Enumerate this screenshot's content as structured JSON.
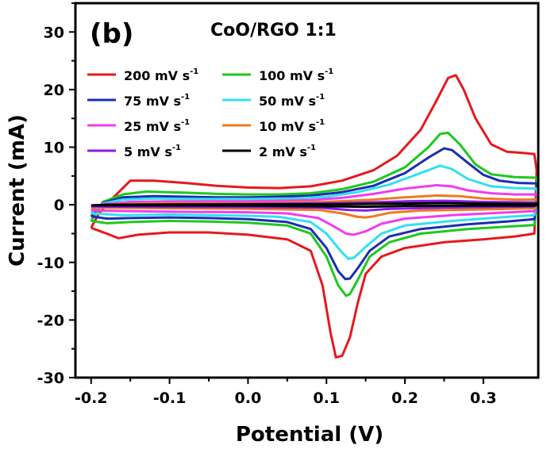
{
  "chart_data": {
    "type": "line",
    "panel_label": "(b)",
    "title": "CoO/RGO 1:1",
    "xlabel": "Potential (V)",
    "ylabel": "Current (mA)",
    "xlim": [
      -0.22,
      0.37
    ],
    "ylim": [
      -30,
      35
    ],
    "xticks": [
      -0.2,
      -0.1,
      0.0,
      0.1,
      0.2,
      0.3
    ],
    "xtick_labels": [
      "-0.2",
      "-0.1",
      "0.0",
      "0.1",
      "0.2",
      "0.3"
    ],
    "yticks": [
      -30,
      -20,
      -10,
      0,
      10,
      20,
      30
    ],
    "ytick_labels": [
      "-30",
      "-20",
      "-10",
      "0",
      "10",
      "20",
      "30"
    ],
    "grid": false,
    "legend_position": "top-left",
    "series": [
      {
        "name": "200 mV s",
        "color": "#e41a1c",
        "anodic": [
          [
            -0.2,
            -4
          ],
          [
            -0.19,
            -1.5
          ],
          [
            -0.17,
            1.5
          ],
          [
            -0.15,
            4.2
          ],
          [
            -0.12,
            4.2
          ],
          [
            -0.08,
            3.8
          ],
          [
            -0.04,
            3.3
          ],
          [
            0.0,
            3.0
          ],
          [
            0.04,
            2.9
          ],
          [
            0.08,
            3.2
          ],
          [
            0.12,
            4.2
          ],
          [
            0.16,
            6.0
          ],
          [
            0.19,
            8.5
          ],
          [
            0.22,
            13
          ],
          [
            0.24,
            18
          ],
          [
            0.255,
            22
          ],
          [
            0.265,
            22.5
          ],
          [
            0.275,
            20
          ],
          [
            0.29,
            15
          ],
          [
            0.31,
            10.5
          ],
          [
            0.33,
            9.2
          ],
          [
            0.35,
            9.0
          ],
          [
            0.365,
            8.8
          ],
          [
            0.368,
            6
          ]
        ],
        "cathodic": [
          [
            0.368,
            6
          ],
          [
            0.365,
            -5
          ],
          [
            0.34,
            -5.5
          ],
          [
            0.3,
            -6
          ],
          [
            0.25,
            -6.5
          ],
          [
            0.2,
            -7.5
          ],
          [
            0.17,
            -9
          ],
          [
            0.15,
            -12
          ],
          [
            0.14,
            -17
          ],
          [
            0.13,
            -23
          ],
          [
            0.12,
            -26.2
          ],
          [
            0.112,
            -26.5
          ],
          [
            0.105,
            -22
          ],
          [
            0.095,
            -14
          ],
          [
            0.08,
            -8
          ],
          [
            0.05,
            -6
          ],
          [
            0.0,
            -5.2
          ],
          [
            -0.05,
            -4.8
          ],
          [
            -0.1,
            -4.8
          ],
          [
            -0.14,
            -5.2
          ],
          [
            -0.165,
            -5.8
          ],
          [
            -0.18,
            -5
          ],
          [
            -0.2,
            -4
          ]
        ]
      },
      {
        "name": "100 mV s",
        "color": "#1ec81e",
        "anodic": [
          [
            -0.2,
            -2.8
          ],
          [
            -0.185,
            0.5
          ],
          [
            -0.16,
            1.8
          ],
          [
            -0.13,
            2.3
          ],
          [
            -0.08,
            2.1
          ],
          [
            -0.04,
            1.9
          ],
          [
            0.0,
            1.8
          ],
          [
            0.04,
            1.8
          ],
          [
            0.08,
            2.0
          ],
          [
            0.12,
            2.7
          ],
          [
            0.16,
            4.0
          ],
          [
            0.2,
            6.5
          ],
          [
            0.23,
            10
          ],
          [
            0.245,
            12.3
          ],
          [
            0.255,
            12.5
          ],
          [
            0.27,
            10.5
          ],
          [
            0.29,
            7
          ],
          [
            0.31,
            5.3
          ],
          [
            0.34,
            4.8
          ],
          [
            0.368,
            4.7
          ],
          [
            0.369,
            3
          ]
        ],
        "cathodic": [
          [
            0.369,
            3
          ],
          [
            0.365,
            -3.5
          ],
          [
            0.33,
            -3.8
          ],
          [
            0.28,
            -4.2
          ],
          [
            0.22,
            -5
          ],
          [
            0.18,
            -6.5
          ],
          [
            0.155,
            -9
          ],
          [
            0.14,
            -13
          ],
          [
            0.13,
            -15.5
          ],
          [
            0.125,
            -15.8
          ],
          [
            0.115,
            -14
          ],
          [
            0.1,
            -9
          ],
          [
            0.08,
            -5
          ],
          [
            0.05,
            -3.6
          ],
          [
            0.0,
            -3.1
          ],
          [
            -0.05,
            -2.9
          ],
          [
            -0.1,
            -2.8
          ],
          [
            -0.15,
            -3.0
          ],
          [
            -0.18,
            -3.2
          ],
          [
            -0.2,
            -2.8
          ]
        ]
      },
      {
        "name": "75 mV s",
        "color": "#1a2eb0",
        "anodic": [
          [
            -0.2,
            -2.0
          ],
          [
            -0.185,
            0.3
          ],
          [
            -0.16,
            1.3
          ],
          [
            -0.12,
            1.5
          ],
          [
            -0.08,
            1.4
          ],
          [
            -0.04,
            1.3
          ],
          [
            0.0,
            1.3
          ],
          [
            0.04,
            1.4
          ],
          [
            0.08,
            1.6
          ],
          [
            0.12,
            2.2
          ],
          [
            0.16,
            3.3
          ],
          [
            0.2,
            5.5
          ],
          [
            0.23,
            8.2
          ],
          [
            0.25,
            9.8
          ],
          [
            0.26,
            9.5
          ],
          [
            0.28,
            7.3
          ],
          [
            0.3,
            5.2
          ],
          [
            0.32,
            4.2
          ],
          [
            0.345,
            3.8
          ],
          [
            0.368,
            3.7
          ],
          [
            0.369,
            2
          ]
        ],
        "cathodic": [
          [
            0.369,
            2
          ],
          [
            0.365,
            -2.5
          ],
          [
            0.33,
            -2.9
          ],
          [
            0.28,
            -3.4
          ],
          [
            0.22,
            -4.2
          ],
          [
            0.18,
            -5.5
          ],
          [
            0.155,
            -8
          ],
          [
            0.14,
            -11
          ],
          [
            0.13,
            -12.8
          ],
          [
            0.124,
            -12.9
          ],
          [
            0.115,
            -11.5
          ],
          [
            0.1,
            -7.5
          ],
          [
            0.08,
            -4.2
          ],
          [
            0.05,
            -3.0
          ],
          [
            0.0,
            -2.5
          ],
          [
            -0.05,
            -2.3
          ],
          [
            -0.1,
            -2.2
          ],
          [
            -0.15,
            -2.3
          ],
          [
            -0.18,
            -2.4
          ],
          [
            -0.2,
            -2.0
          ]
        ]
      },
      {
        "name": "50 mV s",
        "color": "#33e0f0",
        "anodic": [
          [
            -0.2,
            -1.5
          ],
          [
            -0.185,
            0.2
          ],
          [
            -0.16,
            0.9
          ],
          [
            -0.12,
            1.1
          ],
          [
            -0.06,
            1.0
          ],
          [
            0.0,
            1.0
          ],
          [
            0.06,
            1.1
          ],
          [
            0.1,
            1.4
          ],
          [
            0.14,
            2.2
          ],
          [
            0.18,
            3.5
          ],
          [
            0.22,
            5.5
          ],
          [
            0.245,
            6.8
          ],
          [
            0.26,
            6.2
          ],
          [
            0.28,
            4.5
          ],
          [
            0.31,
            3.2
          ],
          [
            0.34,
            2.9
          ],
          [
            0.368,
            2.8
          ],
          [
            0.369,
            1.5
          ]
        ],
        "cathodic": [
          [
            0.369,
            1.5
          ],
          [
            0.365,
            -1.8
          ],
          [
            0.32,
            -2.2
          ],
          [
            0.26,
            -2.8
          ],
          [
            0.2,
            -3.6
          ],
          [
            0.17,
            -5
          ],
          [
            0.15,
            -7.3
          ],
          [
            0.135,
            -9.2
          ],
          [
            0.128,
            -9.4
          ],
          [
            0.118,
            -8
          ],
          [
            0.1,
            -5
          ],
          [
            0.08,
            -3
          ],
          [
            0.04,
            -2.1
          ],
          [
            0.0,
            -1.9
          ],
          [
            -0.1,
            -1.7
          ],
          [
            -0.16,
            -1.8
          ],
          [
            -0.2,
            -1.5
          ]
        ]
      },
      {
        "name": "25 mV s",
        "color": "#f03cf0",
        "anodic": [
          [
            -0.2,
            -1.0
          ],
          [
            -0.185,
            0.1
          ],
          [
            -0.15,
            0.5
          ],
          [
            -0.1,
            0.6
          ],
          [
            0.0,
            0.6
          ],
          [
            0.08,
            0.8
          ],
          [
            0.12,
            1.2
          ],
          [
            0.16,
            1.9
          ],
          [
            0.2,
            2.8
          ],
          [
            0.24,
            3.4
          ],
          [
            0.26,
            3.2
          ],
          [
            0.28,
            2.5
          ],
          [
            0.31,
            2.0
          ],
          [
            0.34,
            1.8
          ],
          [
            0.368,
            1.8
          ],
          [
            0.369,
            1.0
          ]
        ],
        "cathodic": [
          [
            0.369,
            1.0
          ],
          [
            0.365,
            -1.1
          ],
          [
            0.32,
            -1.4
          ],
          [
            0.26,
            -1.8
          ],
          [
            0.2,
            -2.4
          ],
          [
            0.17,
            -3.3
          ],
          [
            0.15,
            -4.6
          ],
          [
            0.135,
            -5.2
          ],
          [
            0.125,
            -5.0
          ],
          [
            0.11,
            -3.8
          ],
          [
            0.09,
            -2.3
          ],
          [
            0.05,
            -1.5
          ],
          [
            0.0,
            -1.3
          ],
          [
            -0.1,
            -1.2
          ],
          [
            -0.2,
            -1.0
          ]
        ]
      },
      {
        "name": "10 mV s",
        "color": "#f07a1e",
        "anodic": [
          [
            -0.2,
            -0.5
          ],
          [
            -0.18,
            0.1
          ],
          [
            -0.12,
            0.3
          ],
          [
            0.0,
            0.3
          ],
          [
            0.1,
            0.5
          ],
          [
            0.16,
            0.9
          ],
          [
            0.2,
            1.3
          ],
          [
            0.24,
            1.6
          ],
          [
            0.27,
            1.5
          ],
          [
            0.3,
            1.1
          ],
          [
            0.34,
            0.9
          ],
          [
            0.368,
            0.9
          ],
          [
            0.369,
            0.4
          ]
        ],
        "cathodic": [
          [
            0.369,
            0.4
          ],
          [
            0.365,
            -0.6
          ],
          [
            0.3,
            -0.8
          ],
          [
            0.22,
            -1.0
          ],
          [
            0.18,
            -1.4
          ],
          [
            0.16,
            -2.0
          ],
          [
            0.15,
            -2.2
          ],
          [
            0.14,
            -2.1
          ],
          [
            0.12,
            -1.5
          ],
          [
            0.09,
            -0.9
          ],
          [
            0.0,
            -0.7
          ],
          [
            -0.1,
            -0.6
          ],
          [
            -0.2,
            -0.5
          ]
        ]
      },
      {
        "name": "5 mV s",
        "color": "#8a1ee6",
        "anodic": [
          [
            -0.2,
            -0.3
          ],
          [
            -0.18,
            0.05
          ],
          [
            0.0,
            0.15
          ],
          [
            0.12,
            0.3
          ],
          [
            0.2,
            0.6
          ],
          [
            0.25,
            0.7
          ],
          [
            0.3,
            0.5
          ],
          [
            0.368,
            0.4
          ],
          [
            0.369,
            0.2
          ]
        ],
        "cathodic": [
          [
            0.369,
            0.2
          ],
          [
            0.365,
            -0.3
          ],
          [
            0.25,
            -0.5
          ],
          [
            0.18,
            -0.7
          ],
          [
            0.15,
            -1.0
          ],
          [
            0.13,
            -0.9
          ],
          [
            0.09,
            -0.5
          ],
          [
            0.0,
            -0.4
          ],
          [
            -0.2,
            -0.3
          ]
        ]
      },
      {
        "name": "2 mV s",
        "color": "#000000",
        "anodic": [
          [
            -0.2,
            -0.1
          ],
          [
            -0.18,
            0.0
          ],
          [
            0.0,
            0.05
          ],
          [
            0.15,
            0.15
          ],
          [
            0.25,
            0.3
          ],
          [
            0.3,
            0.2
          ],
          [
            0.368,
            0.15
          ],
          [
            0.369,
            0.05
          ]
        ],
        "cathodic": [
          [
            0.369,
            0.05
          ],
          [
            0.365,
            -0.15
          ],
          [
            0.2,
            -0.2
          ],
          [
            0.15,
            -0.35
          ],
          [
            0.12,
            -0.3
          ],
          [
            0.0,
            -0.15
          ],
          [
            -0.2,
            -0.1
          ]
        ]
      }
    ],
    "legend_superscript": "-1"
  }
}
